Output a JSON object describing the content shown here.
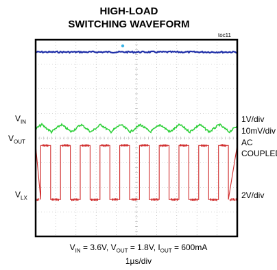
{
  "header": {
    "title_line1": "HIGH-LOAD",
    "title_line2": "SWITCHING WAVEFORM",
    "figure_id": "toc11"
  },
  "left_labels": {
    "vin": {
      "main": "V",
      "sub": "IN"
    },
    "vout": {
      "main": "V",
      "sub": "OUT"
    },
    "vlx": {
      "main": "V",
      "sub": "LX"
    }
  },
  "right_labels": {
    "vin_scale": "1V/div",
    "vout_scale": "10mV/div",
    "vout_coupling_1": "AC",
    "vout_coupling_2": "COUPLED",
    "vlx_scale": "2V/div"
  },
  "footer": {
    "conditions": {
      "vin_main": "V",
      "vin_sub": "IN",
      "vin_value": " = 3.6V, ",
      "vout_main": "V",
      "vout_sub": "OUT",
      "vout_value": " = 1.8V, ",
      "iout_main": "I",
      "iout_sub": "OUT",
      "iout_value": " = 600mA"
    },
    "timebase": "1µs/div"
  },
  "colors": {
    "vin": "#1f2fa8",
    "vout": "#2fd03a",
    "vlx": "#d02a2a",
    "grid": "#aaaaaa",
    "frame": "#000000",
    "trigger_marker": "#3ab4e6"
  },
  "chart_data": {
    "type": "line",
    "title": "HIGH-LOAD SWITCHING WAVEFORM",
    "xlabel": "1µs/div",
    "ylabel": "",
    "x_divisions": 10,
    "y_divisions": 8,
    "grid": true,
    "series": [
      {
        "name": "VIN",
        "scale": "1V/div",
        "description": "flat DC level",
        "level_div": 7.5
      },
      {
        "name": "VOUT",
        "scale": "10mV/div",
        "coupling": "AC COUPLED",
        "level_div": 4.4,
        "ripple_pp_div": 0.3,
        "ripple_period_div": 0.98
      },
      {
        "name": "VLX",
        "scale": "2V/div",
        "high_div": 3.7,
        "low_div": 1.5,
        "period_div": 0.98,
        "duty": 0.5,
        "first_rising_edge_div": 0.25
      }
    ]
  }
}
